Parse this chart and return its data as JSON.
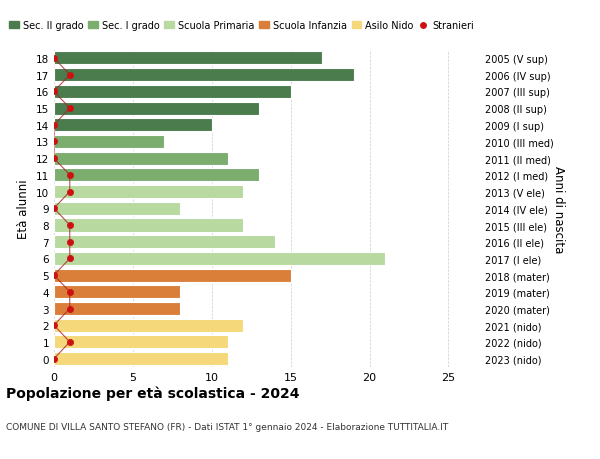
{
  "ages": [
    18,
    17,
    16,
    15,
    14,
    13,
    12,
    11,
    10,
    9,
    8,
    7,
    6,
    5,
    4,
    3,
    2,
    1,
    0
  ],
  "values": [
    17,
    19,
    15,
    13,
    10,
    7,
    11,
    13,
    12,
    8,
    12,
    14,
    21,
    15,
    8,
    8,
    12,
    11,
    11
  ],
  "bar_colors": [
    "#4a7c4e",
    "#4a7c4e",
    "#4a7c4e",
    "#4a7c4e",
    "#4a7c4e",
    "#7aad6e",
    "#7aad6e",
    "#7aad6e",
    "#b8d9a0",
    "#b8d9a0",
    "#b8d9a0",
    "#b8d9a0",
    "#b8d9a0",
    "#d97f3a",
    "#d97f3a",
    "#d97f3a",
    "#f5d87a",
    "#f5d87a",
    "#f5d87a"
  ],
  "right_labels": [
    "2005 (V sup)",
    "2006 (IV sup)",
    "2007 (III sup)",
    "2008 (II sup)",
    "2009 (I sup)",
    "2010 (III med)",
    "2011 (II med)",
    "2012 (I med)",
    "2013 (V ele)",
    "2014 (IV ele)",
    "2015 (III ele)",
    "2016 (II ele)",
    "2017 (I ele)",
    "2018 (mater)",
    "2019 (mater)",
    "2020 (mater)",
    "2021 (nido)",
    "2022 (nido)",
    "2023 (nido)"
  ],
  "legend_labels": [
    "Sec. II grado",
    "Sec. I grado",
    "Scuola Primaria",
    "Scuola Infanzia",
    "Asilo Nido",
    "Stranieri"
  ],
  "legend_colors": [
    "#4a7c4e",
    "#7aad6e",
    "#b8d9a0",
    "#d97f3a",
    "#f5d87a",
    "#cc1111"
  ],
  "ylabel": "Età alunni",
  "right_ylabel": "Anni di nascita",
  "title": "Popolazione per età scolastica - 2024",
  "subtitle": "COMUNE DI VILLA SANTO STEFANO (FR) - Dati ISTAT 1° gennaio 2024 - Elaborazione TUTTITALIA.IT",
  "xlim": [
    0,
    27
  ],
  "stranieri_vals": [
    0,
    1,
    0,
    1,
    0,
    0,
    0,
    1,
    1,
    0,
    1,
    1,
    1,
    0,
    1,
    1,
    0,
    1,
    0
  ],
  "background_color": "#ffffff",
  "grid_color": "#cccccc"
}
